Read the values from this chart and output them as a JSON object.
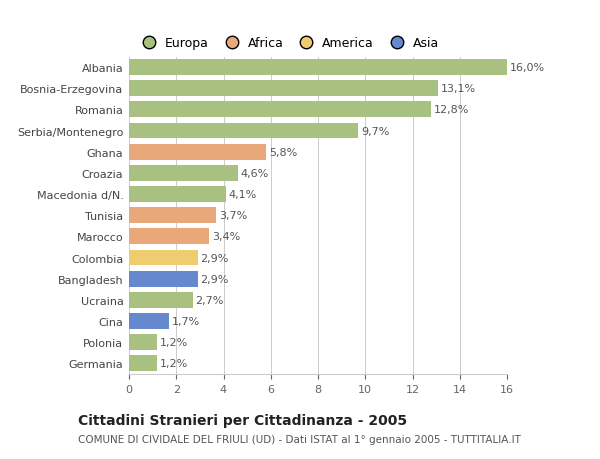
{
  "countries": [
    "Albania",
    "Bosnia-Erzegovina",
    "Romania",
    "Serbia/Montenegro",
    "Ghana",
    "Croazia",
    "Macedonia d/N.",
    "Tunisia",
    "Marocco",
    "Colombia",
    "Bangladesh",
    "Ucraina",
    "Cina",
    "Polonia",
    "Germania"
  ],
  "values": [
    16.0,
    13.1,
    12.8,
    9.7,
    5.8,
    4.6,
    4.1,
    3.7,
    3.4,
    2.9,
    2.9,
    2.7,
    1.7,
    1.2,
    1.2
  ],
  "labels": [
    "16,0%",
    "13,1%",
    "12,8%",
    "9,7%",
    "5,8%",
    "4,6%",
    "4,1%",
    "3,7%",
    "3,4%",
    "2,9%",
    "2,9%",
    "2,7%",
    "1,7%",
    "1,2%",
    "1,2%"
  ],
  "continents": [
    "Europa",
    "Europa",
    "Europa",
    "Europa",
    "Africa",
    "Europa",
    "Europa",
    "Africa",
    "Africa",
    "America",
    "Asia",
    "Europa",
    "Asia",
    "Europa",
    "Europa"
  ],
  "colors": {
    "Europa": "#a8c080",
    "Africa": "#e8a87a",
    "America": "#f0cc70",
    "Asia": "#6688cc"
  },
  "legend_order": [
    "Europa",
    "Africa",
    "America",
    "Asia"
  ],
  "title": "Cittadini Stranieri per Cittadinanza - 2005",
  "subtitle": "COMUNE DI CIVIDALE DEL FRIULI (UD) - Dati ISTAT al 1° gennaio 2005 - TUTTITALIA.IT",
  "xlim": [
    0,
    16
  ],
  "xticks": [
    0,
    2,
    4,
    6,
    8,
    10,
    12,
    14,
    16
  ],
  "bg_color": "#ffffff",
  "grid_color": "#cccccc",
  "bar_height": 0.75,
  "label_fontsize": 8,
  "title_fontsize": 10,
  "subtitle_fontsize": 7.5,
  "tick_fontsize": 8,
  "country_fontsize": 8
}
